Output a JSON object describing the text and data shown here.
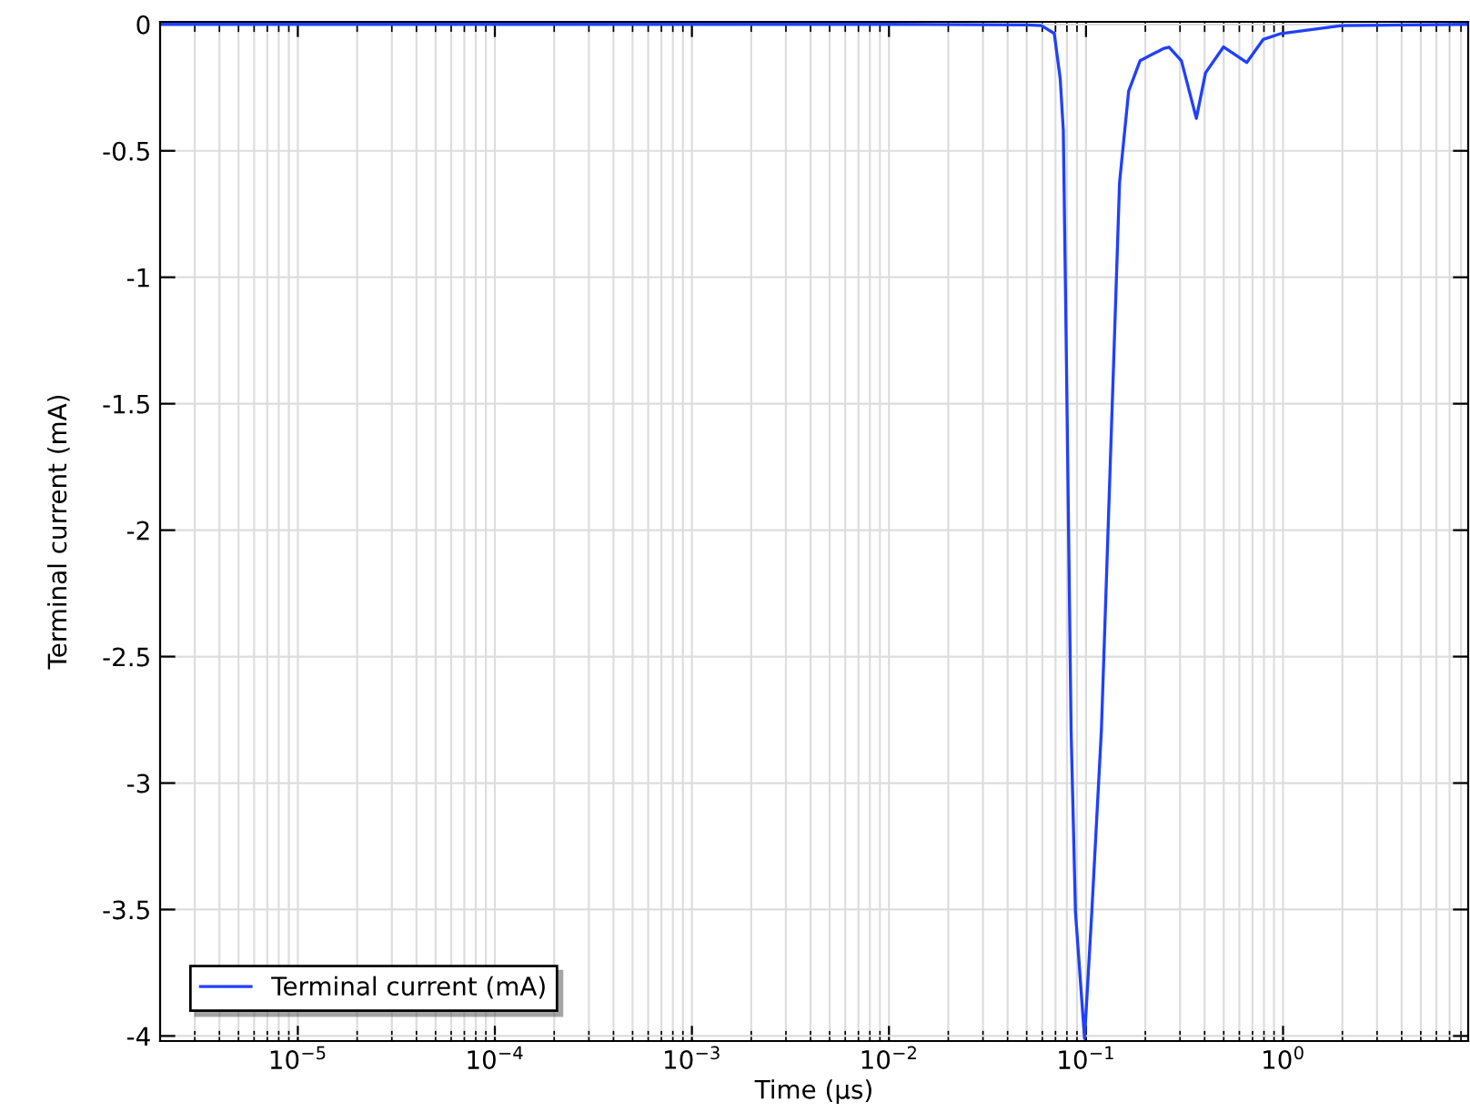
{
  "chart_data": {
    "type": "line",
    "xlabel": "Time (µs)",
    "ylabel": "Terminal current (mA)",
    "x": [
      2e-06,
      0.01,
      0.05,
      0.0594,
      0.069,
      0.074,
      0.0767,
      0.0796,
      0.084,
      0.0884,
      0.0983,
      0.107,
      0.1197,
      0.138,
      0.148,
      0.1646,
      0.188,
      0.2465,
      0.264,
      0.305,
      0.363,
      0.404,
      0.499,
      0.654,
      0.792,
      0.979,
      1.985,
      8.7
    ],
    "series": [
      {
        "name": "Terminal current (mA)",
        "color": "#2040ff",
        "values": [
          0,
          0,
          -0.002,
          -0.005,
          -0.036,
          -0.216,
          -0.42,
          -1.345,
          -2.79,
          -3.51,
          -4.01,
          -3.51,
          -2.79,
          -1.345,
          -0.625,
          -0.264,
          -0.144,
          -0.096,
          -0.09,
          -0.144,
          -0.372,
          -0.192,
          -0.089,
          -0.151,
          -0.06,
          -0.036,
          -0.005,
          0
        ]
      }
    ],
    "log": "x",
    "xlim": [
      2e-06,
      8.7
    ],
    "ylim": [
      -4.02,
      0.01
    ],
    "xticks": [
      {
        "value": 1e-05,
        "label": "10$^{−5}$"
      },
      {
        "value": 0.0001,
        "label": "10$^{−4}$"
      },
      {
        "value": 0.001,
        "label": "10$^{−3}$"
      },
      {
        "value": 0.01,
        "label": "10$^{−2}$"
      },
      {
        "value": 0.1,
        "label": "10$^{−1}$"
      },
      {
        "value": 1,
        "label": "10$^{0}$"
      }
    ],
    "yticks": [
      0,
      -0.5,
      -1,
      -1.5,
      -2,
      -2.5,
      -3,
      -3.5,
      -4
    ],
    "grid": true,
    "legend": "bottom left",
    "marker": "none",
    "line_style": "solid"
  }
}
